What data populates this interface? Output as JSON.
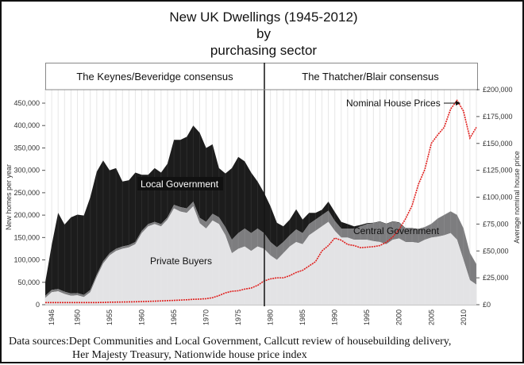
{
  "title_lines": [
    "New UK Dwellings (1945-2012)",
    "by",
    "purchasing sector"
  ],
  "eras": [
    {
      "label": "The Keynes/Beveridge consensus",
      "start": 1945,
      "end": 1979
    },
    {
      "label": "The Thatcher/Blair consensus",
      "start": 1979,
      "end": 2012
    }
  ],
  "sources": [
    "Data sources:Dept Communities and Local Government, Callcutt review of housebuilding delivery,",
    "Her Majesty Treasury, Nationwide house price index"
  ],
  "colors": {
    "private": "#e3e3e5",
    "central": "#7d7d7f",
    "local": "#1c1c1c",
    "price": "#e0201e"
  },
  "chart_data": {
    "type": "area",
    "title": "New UK Dwellings (1945-2012) by purchasing sector",
    "xlabel": "",
    "ylabel": "New homes per year",
    "y2label": "Average nominal house price",
    "xlim": [
      1945,
      2012
    ],
    "ylim": [
      0,
      475000
    ],
    "y2lim": [
      0,
      200000
    ],
    "x_ticks": [
      "1946",
      "1950",
      "1955",
      "1960",
      "1965",
      "1970",
      "1975",
      "1980",
      "1985",
      "1990",
      "1995",
      "2000",
      "2005",
      "2010"
    ],
    "y_ticks": [
      "0",
      "50,000",
      "100,000",
      "150,000",
      "200,000",
      "250,000",
      "300,000",
      "350,000",
      "400,000",
      "450,000"
    ],
    "y2_ticks": [
      "£0",
      "£25,000",
      "£50,000",
      "£75,000",
      "£100,000",
      "£125,000",
      "£150,000",
      "£175,000",
      "£200,000"
    ],
    "grid": true,
    "x": [
      1945,
      1946,
      1947,
      1948,
      1949,
      1950,
      1951,
      1952,
      1953,
      1954,
      1955,
      1956,
      1957,
      1958,
      1959,
      1960,
      1961,
      1962,
      1963,
      1964,
      1965,
      1966,
      1967,
      1968,
      1969,
      1970,
      1971,
      1972,
      1973,
      1974,
      1975,
      1976,
      1977,
      1978,
      1979,
      1980,
      1981,
      1982,
      1983,
      1984,
      1985,
      1986,
      1987,
      1988,
      1989,
      1990,
      1991,
      1992,
      1993,
      1994,
      1995,
      1996,
      1997,
      1998,
      1999,
      2000,
      2001,
      2002,
      2003,
      2004,
      2005,
      2006,
      2007,
      2008,
      2009,
      2010,
      2011,
      2012
    ],
    "series": [
      {
        "name": "Private Buyers",
        "stack": true,
        "values": [
          15000,
          28000,
          30000,
          24000,
          20000,
          21000,
          17000,
          28000,
          62000,
          92000,
          110000,
          120000,
          125000,
          128000,
          135000,
          160000,
          175000,
          180000,
          175000,
          190000,
          215000,
          208000,
          205000,
          220000,
          182000,
          170000,
          188000,
          180000,
          155000,
          115000,
          125000,
          130000,
          120000,
          130000,
          125000,
          110000,
          100000,
          115000,
          130000,
          140000,
          135000,
          155000,
          165000,
          175000,
          185000,
          165000,
          150000,
          150000,
          145000,
          145000,
          145000,
          142000,
          140000,
          135000,
          145000,
          148000,
          140000,
          140000,
          138000,
          145000,
          150000,
          152000,
          155000,
          160000,
          145000,
          100000,
          55000,
          45000
        ]
      },
      {
        "name": "Central Government",
        "stack": true,
        "values": [
          5000,
          5000,
          5000,
          5000,
          5000,
          5000,
          5000,
          5000,
          5000,
          5000,
          5000,
          5000,
          5000,
          5000,
          5000,
          5000,
          5000,
          5000,
          5000,
          5000,
          8000,
          10000,
          10000,
          10000,
          12000,
          15000,
          15000,
          15000,
          18000,
          30000,
          35000,
          40000,
          40000,
          40000,
          35000,
          30000,
          28000,
          25000,
          25000,
          28000,
          25000,
          25000,
          25000,
          25000,
          25000,
          22000,
          20000,
          20000,
          25000,
          30000,
          35000,
          40000,
          45000,
          45000,
          40000,
          35000,
          30000,
          30000,
          30000,
          28000,
          30000,
          40000,
          45000,
          48000,
          55000,
          70000,
          60000,
          45000
        ]
      },
      {
        "name": "Local Government",
        "stack": true,
        "values": [
          30000,
          100000,
          170000,
          150000,
          170000,
          175000,
          177000,
          207000,
          230000,
          225000,
          185000,
          180000,
          145000,
          145000,
          155000,
          125000,
          110000,
          120000,
          115000,
          120000,
          145000,
          150000,
          160000,
          170000,
          190000,
          165000,
          155000,
          110000,
          120000,
          160000,
          170000,
          150000,
          135000,
          105000,
          90000,
          80000,
          55000,
          35000,
          35000,
          45000,
          30000,
          25000,
          15000,
          12000,
          20000,
          20000,
          15000,
          10000,
          5000,
          3000,
          2000,
          1000,
          1000,
          1000,
          1000,
          1000,
          1000,
          1000,
          1000,
          500,
          500,
          500,
          500,
          500,
          500,
          500,
          500,
          500
        ]
      },
      {
        "name": "Nominal House Prices",
        "axis": "y2",
        "type": "line",
        "values": [
          2000,
          2000,
          2000,
          2000,
          2000,
          2000,
          2000,
          2000,
          2000,
          2100,
          2300,
          2400,
          2500,
          2600,
          2700,
          2900,
          3100,
          3300,
          3500,
          3800,
          4000,
          4300,
          4600,
          5000,
          5200,
          5600,
          6500,
          8500,
          11000,
          12500,
          13000,
          14500,
          15500,
          18000,
          22000,
          24000,
          25000,
          25000,
          27000,
          30000,
          32000,
          36000,
          40000,
          50000,
          55000,
          62000,
          60000,
          56000,
          55000,
          53000,
          53500,
          54000,
          55000,
          58000,
          63000,
          70000,
          80000,
          92000,
          112000,
          126000,
          150000,
          158000,
          165000,
          182000,
          190000,
          180000,
          155000,
          165000
        ]
      }
    ],
    "annotations": [
      {
        "text": "Local Government",
        "series": "Local Government"
      },
      {
        "text": "Private Buyers",
        "series": "Private Buyers"
      },
      {
        "text": "Central Government",
        "series": "Central Government"
      },
      {
        "text": "Nominal House Prices",
        "series": "Nominal House Prices",
        "arrow": true
      }
    ],
    "divider_year": 1979
  }
}
